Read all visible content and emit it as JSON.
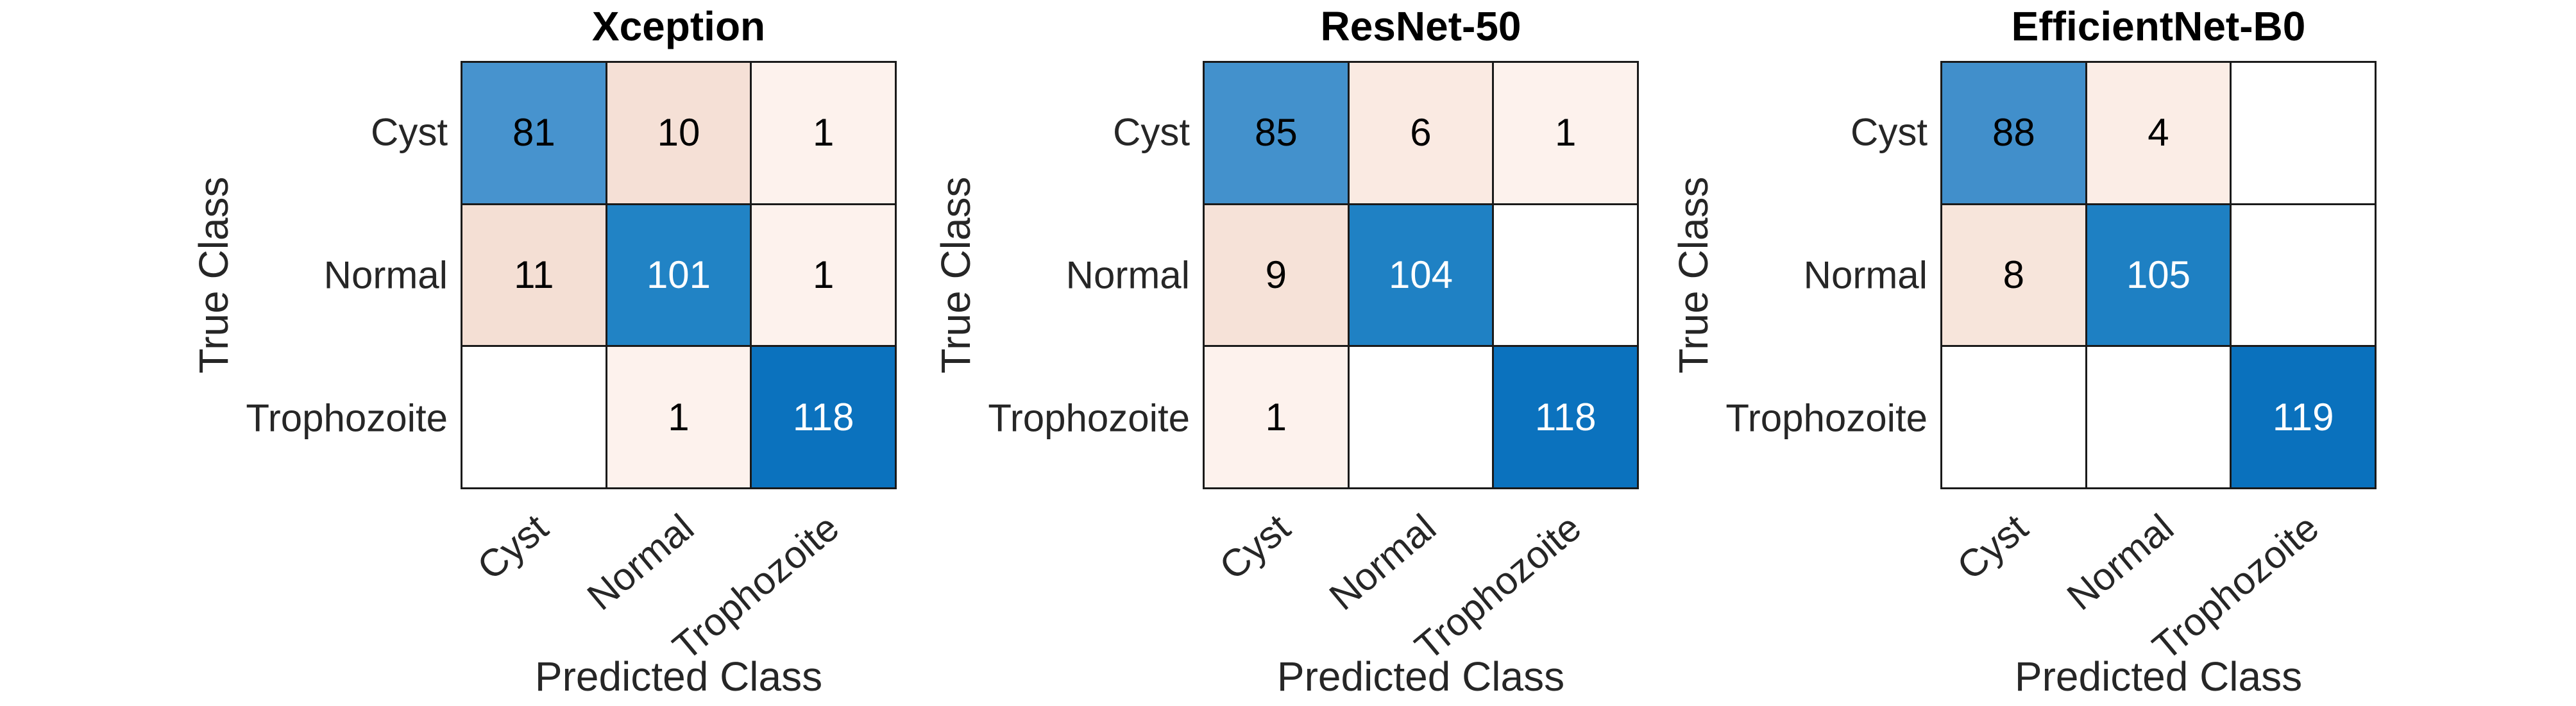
{
  "figure": {
    "background": "#ffffff",
    "label_color": "#262626",
    "grid_line_color": "#1a1a1a",
    "diagonal_base_color": "#0b72be",
    "offdiagonal_base_color": "#d95319"
  },
  "chart_data": [
    {
      "type": "heatmap",
      "subtype": "confusion-matrix",
      "title": "Xception",
      "xlabel": "Predicted Class",
      "ylabel": "True Class",
      "classes": [
        "Cyst",
        "Normal",
        "Trophozoite"
      ],
      "matrix": [
        [
          81,
          10,
          1
        ],
        [
          11,
          101,
          1
        ],
        [
          0,
          1,
          118
        ]
      ],
      "zeros_shown_blank": true,
      "cell_bg": [
        [
          "#4793CE",
          "#F5E0D6",
          "#FDF2ED"
        ],
        [
          "#F4DFD4",
          "#2183C5",
          "#FDF2ED"
        ],
        [
          "#FFFFFF",
          "#FDF2ED",
          "#0B72BE"
        ]
      ],
      "cell_fg": [
        [
          "#000000",
          "#000000",
          "#000000"
        ],
        [
          "#000000",
          "#FFFFFF",
          "#000000"
        ],
        [
          "#000000",
          "#000000",
          "#FFFFFF"
        ]
      ]
    },
    {
      "type": "heatmap",
      "subtype": "confusion-matrix",
      "title": "ResNet-50",
      "xlabel": "Predicted Class",
      "ylabel": "True Class",
      "classes": [
        "Cyst",
        "Normal",
        "Trophozoite"
      ],
      "matrix": [
        [
          85,
          6,
          1
        ],
        [
          9,
          104,
          0
        ],
        [
          1,
          0,
          118
        ]
      ],
      "zeros_shown_blank": true,
      "cell_bg": [
        [
          "#4391CC",
          "#FAEAE2",
          "#FDF2ED"
        ],
        [
          "#F6E2D8",
          "#1F81C4",
          "#FFFFFF"
        ],
        [
          "#FDF2ED",
          "#FFFFFF",
          "#0B72BE"
        ]
      ],
      "cell_fg": [
        [
          "#000000",
          "#000000",
          "#000000"
        ],
        [
          "#000000",
          "#FFFFFF",
          "#000000"
        ],
        [
          "#000000",
          "#000000",
          "#FFFFFF"
        ]
      ]
    },
    {
      "type": "heatmap",
      "subtype": "confusion-matrix",
      "title": "EfficientNet-B0",
      "xlabel": "Predicted Class",
      "ylabel": "True Class",
      "classes": [
        "Cyst",
        "Normal",
        "Trophozoite"
      ],
      "matrix": [
        [
          88,
          4,
          0
        ],
        [
          8,
          105,
          0
        ],
        [
          0,
          0,
          119
        ]
      ],
      "zeros_shown_blank": true,
      "cell_bg": [
        [
          "#418FCB",
          "#FBEDE6",
          "#FFFFFF"
        ],
        [
          "#F7E5DB",
          "#1E80C3",
          "#FFFFFF"
        ],
        [
          "#FFFFFF",
          "#FFFFFF",
          "#0A71BD"
        ]
      ],
      "cell_fg": [
        [
          "#000000",
          "#000000",
          "#000000"
        ],
        [
          "#000000",
          "#FFFFFF",
          "#000000"
        ],
        [
          "#000000",
          "#000000",
          "#FFFFFF"
        ]
      ]
    }
  ]
}
